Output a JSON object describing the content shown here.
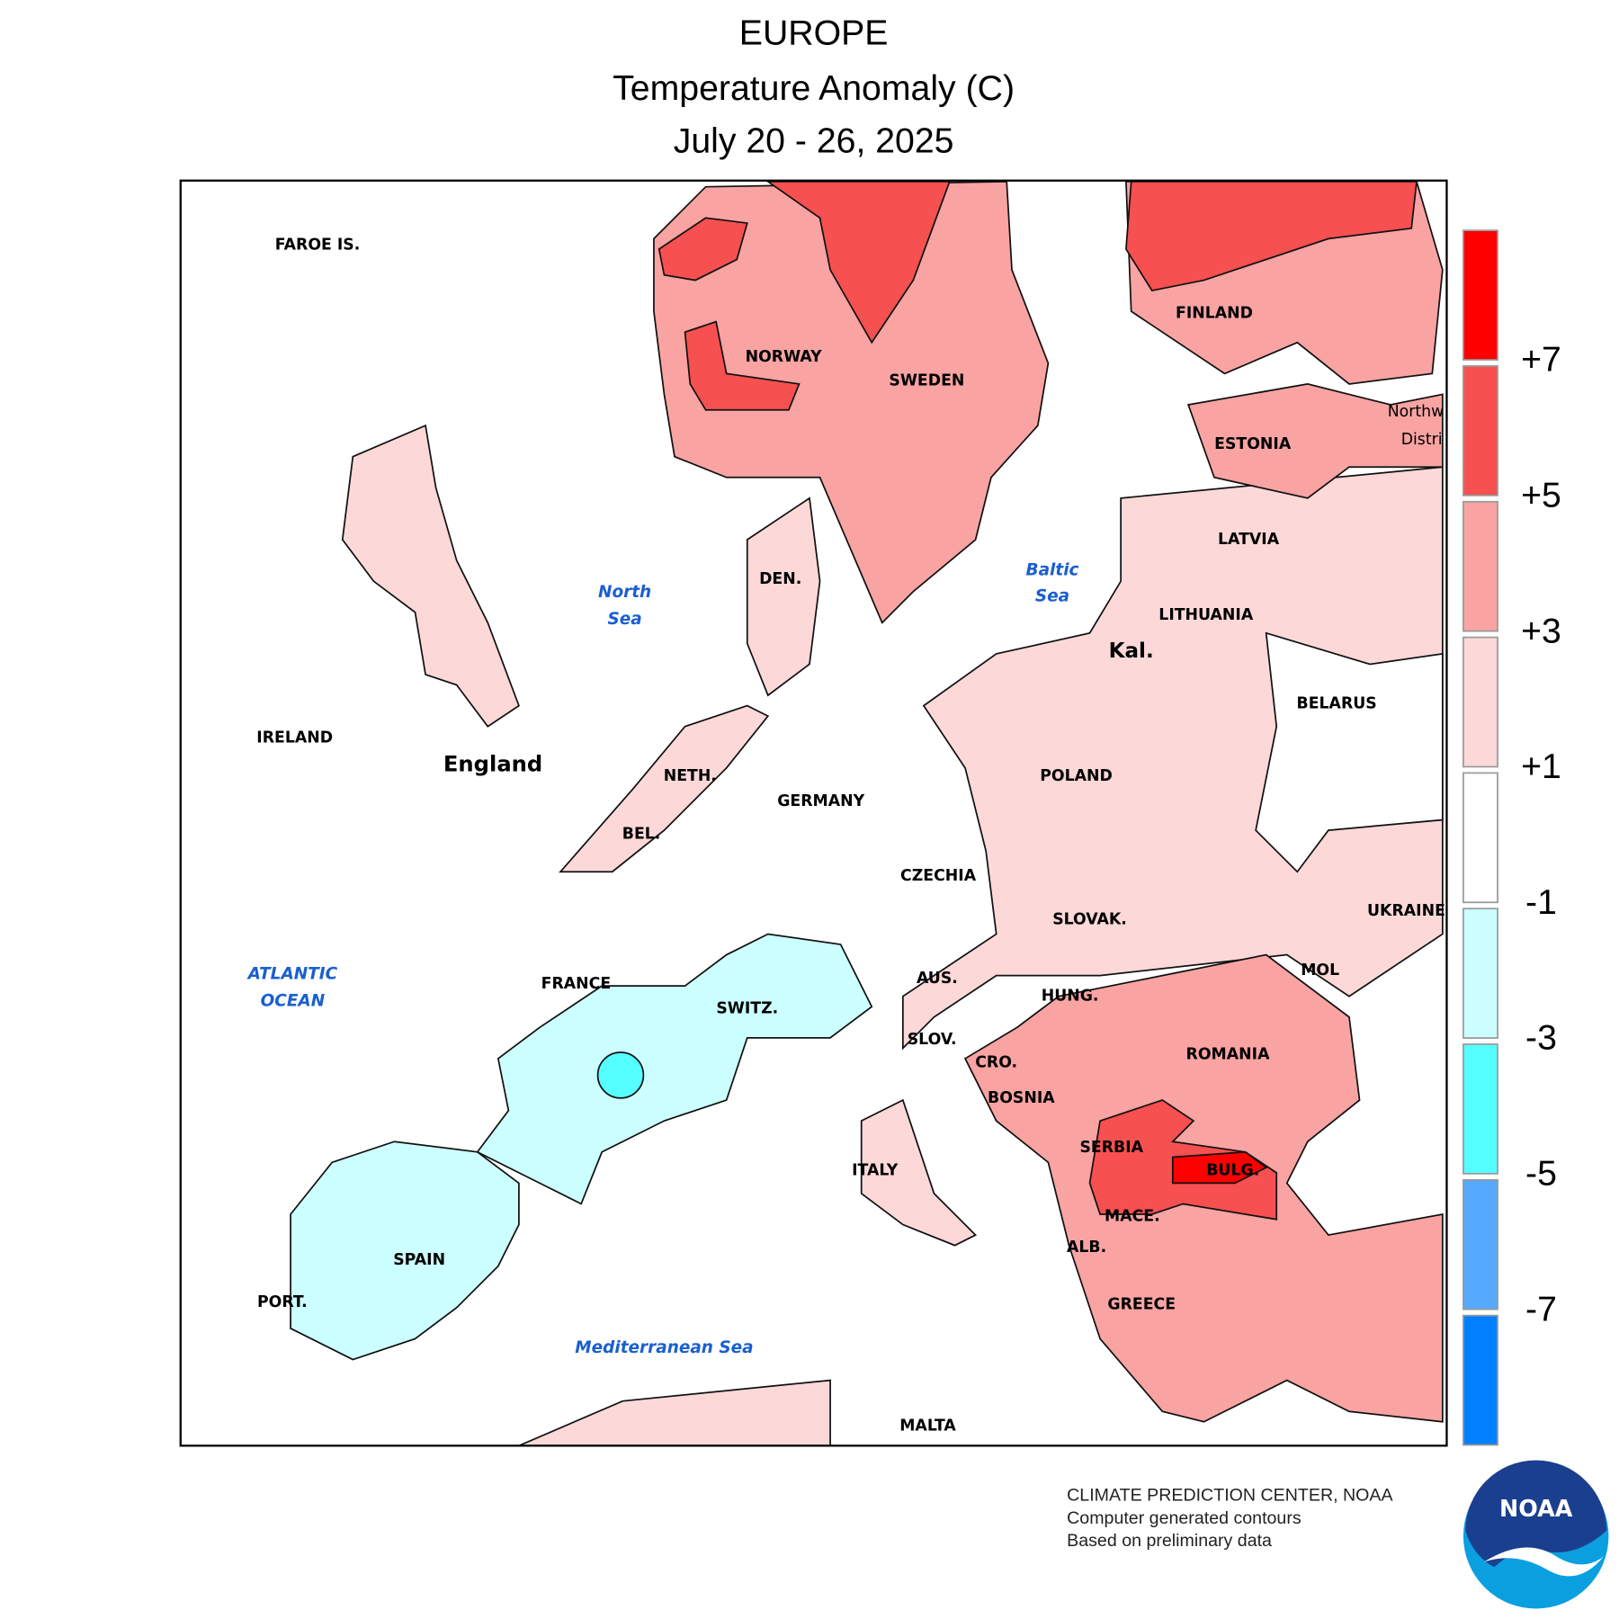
{
  "header": {
    "region": "EUROPE",
    "title": "Temperature Anomaly (C)",
    "dates": "July 20 - 26, 2025"
  },
  "map": {
    "countries": [
      "FAROE IS.",
      "NORWAY",
      "SWEDEN",
      "FINLAND",
      "ESTONIA",
      "LATVIA",
      "LITHUANIA",
      "Kal.",
      "BELARUS",
      "POLAND",
      "UKRAINE",
      "IRELAND",
      "England",
      "NETH.",
      "GERMANY",
      "BEL.",
      "CZECHIA",
      "SLOVAK.",
      "FRANCE",
      "SWITZ.",
      "AUS.",
      "HUNG.",
      "MOL",
      "ROMANIA",
      "SLOV.",
      "CRO.",
      "BOSNIA",
      "SERBIA",
      "BULG.",
      "ITALY",
      "MACE.",
      "ALB.",
      "GREECE",
      "SPAIN",
      "PORT.",
      "MALTA",
      "DEN.",
      "Northw",
      "Distri"
    ],
    "seas": [
      [
        "North",
        "Sea"
      ],
      [
        "Baltic",
        "Sea"
      ],
      [
        "ATLANTIC",
        "OCEAN"
      ],
      [
        "Mediterranean Sea"
      ]
    ]
  },
  "legend": {
    "colors": [
      "#ff0000",
      "#f65050",
      "#f9a3a3",
      "#fcd8d8",
      "#ffffff",
      "#ccffff",
      "#55ffff",
      "#55aaff",
      "#0080ff"
    ],
    "ticks": [
      "+7",
      "+5",
      "+3",
      "+1",
      "-1",
      "-3",
      "-5",
      "-7"
    ]
  },
  "footer": {
    "lines": [
      "CLIMATE PREDICTION CENTER, NOAA",
      "Computer generated contours",
      "Based on preliminary data"
    ]
  },
  "logo": "NOAA"
}
